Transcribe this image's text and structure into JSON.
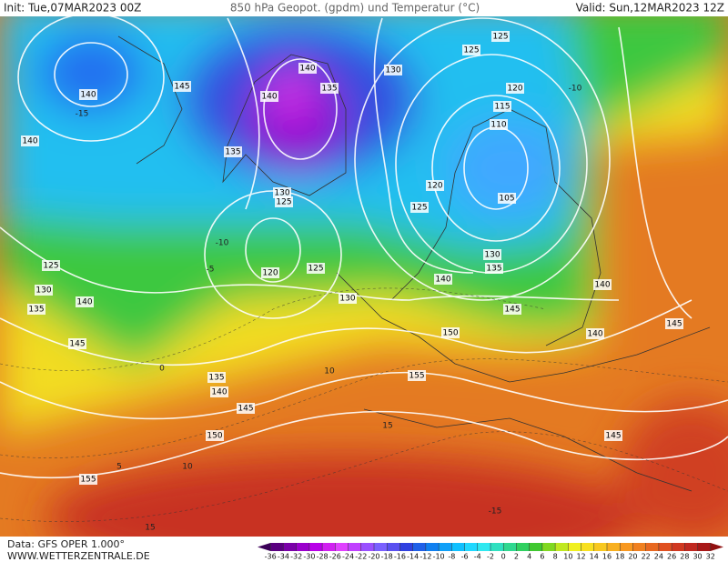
{
  "header": {
    "init": "Init: Tue,07MAR2023 00Z",
    "title": "850 hPa Geopot. (gpdm) und Temperatur (°C)",
    "valid": "Valid: Sun,12MAR2023 12Z"
  },
  "map": {
    "geopotential_labels": [
      140,
      145,
      140,
      140,
      140,
      135,
      135,
      130,
      125,
      125,
      120,
      115,
      110,
      105,
      120,
      125,
      130,
      125,
      120,
      125,
      130,
      140,
      135,
      130,
      140,
      145,
      140,
      145,
      150,
      155,
      145,
      125,
      130,
      135,
      140,
      145,
      135,
      140,
      145,
      150,
      155
    ],
    "temperature_labels": [
      -15,
      -10,
      -10,
      -5,
      0,
      5,
      10,
      15,
      10,
      15,
      -15
    ]
  },
  "colorbar": {
    "ticks": [
      -36,
      -34,
      -32,
      -30,
      -28,
      -26,
      -24,
      -22,
      -20,
      -18,
      -16,
      -14,
      -12,
      -10,
      -8,
      -6,
      -4,
      -2,
      0,
      2,
      4,
      6,
      8,
      10,
      12,
      14,
      16,
      18,
      20,
      22,
      24,
      26,
      28,
      30,
      32
    ],
    "colors": [
      "#3b0058",
      "#5a0080",
      "#7a00a8",
      "#9a00cc",
      "#b800e8",
      "#d020f0",
      "#e040ff",
      "#c040ff",
      "#9a50ff",
      "#7a60ff",
      "#5a50f0",
      "#3040e0",
      "#2060e8",
      "#1080f0",
      "#10a0f8",
      "#10c0ff",
      "#20d8ff",
      "#30e8f0",
      "#30e0c0",
      "#30d890",
      "#30d060",
      "#40c830",
      "#80d820",
      "#c0e820",
      "#f0f020",
      "#f8e020",
      "#f8c820",
      "#f8b020",
      "#f89820",
      "#f08020",
      "#e86820",
      "#e05020",
      "#d03820",
      "#c02820",
      "#a81818",
      "#901010"
    ]
  },
  "footer": {
    "data": "Data: GFS OPER 1.000°",
    "site": "WWW.WETTERZENTRALE.DE"
  }
}
